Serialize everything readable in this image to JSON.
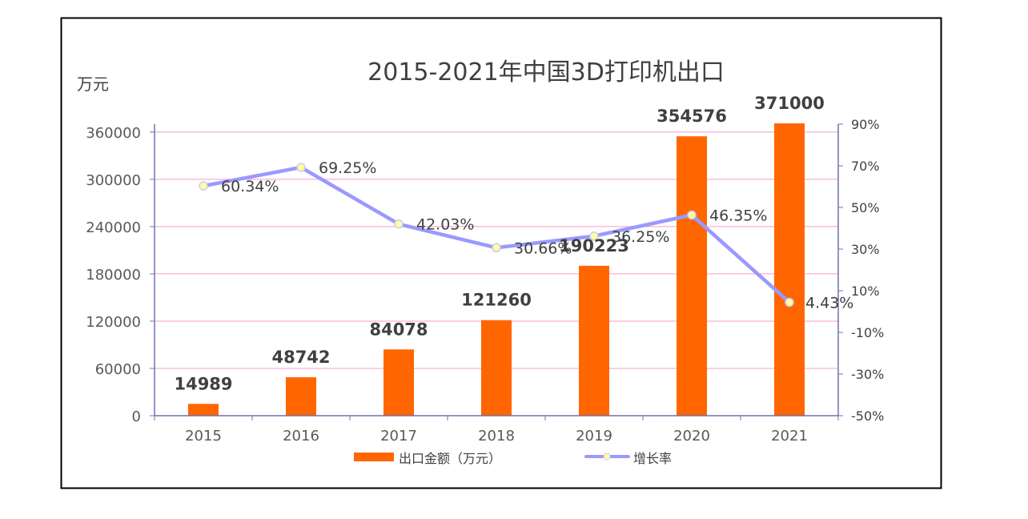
{
  "chart_data": {
    "type": "bar+line",
    "title": "2015-2021年中国3D打印机出口",
    "ylabel": "万元",
    "categories": [
      "2015",
      "2016",
      "2017",
      "2018",
      "2019",
      "2020",
      "2021"
    ],
    "series": [
      {
        "name": "出口金额（万元）",
        "type": "bar",
        "axis": "left",
        "values": [
          14989,
          48742,
          84078,
          121260,
          190223,
          354576,
          371000
        ],
        "labels": [
          "14989",
          "48742",
          "84078",
          "121260",
          "190223",
          "354576",
          "371000"
        ]
      },
      {
        "name": "增长率",
        "type": "line",
        "axis": "right",
        "values": [
          60.34,
          69.25,
          42.03,
          30.66,
          36.25,
          46.35,
          4.43
        ],
        "labels": [
          "60.34%",
          "69.25%",
          "42.03%",
          "30.66%",
          "36.25%",
          "46.35%",
          "4.43%"
        ]
      }
    ],
    "left_axis": {
      "ylim": [
        0,
        370000
      ],
      "ticks": [
        0,
        60000,
        120000,
        180000,
        240000,
        300000,
        360000
      ],
      "tick_labels": [
        "0",
        "60000",
        "120000",
        "180000",
        "240000",
        "300000",
        "360000"
      ]
    },
    "right_axis": {
      "ylim": [
        -50,
        90
      ],
      "ticks": [
        -50,
        -30,
        -10,
        10,
        30,
        50,
        70,
        90
      ],
      "tick_labels": [
        "-50%",
        "-30%",
        "-10%",
        "10%",
        "30%",
        "50%",
        "70%",
        "90%"
      ]
    },
    "grid": true,
    "legend_position": "bottom",
    "colors": {
      "bar": "#FF6600",
      "line": "#9999FF",
      "marker": "#FFFF99",
      "grid": "#FF99CC",
      "axis": "#7070B0"
    }
  }
}
